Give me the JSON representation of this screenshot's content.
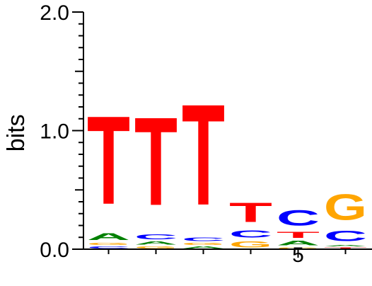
{
  "chart_data": {
    "type": "sequence-logo",
    "ylabel": "bits",
    "ylim": [
      0,
      2.0
    ],
    "y_ticks": [
      {
        "value": 0.0,
        "label": "0.0"
      },
      {
        "value": 1.0,
        "label": "1.0"
      },
      {
        "value": 2.0,
        "label": "2.0"
      }
    ],
    "x_ticks": [
      {
        "position": 5,
        "label": "5"
      }
    ],
    "colors": {
      "A": "#008000",
      "C": "#0000ff",
      "G": "#ffa500",
      "T": "#ff0000"
    },
    "positions": [
      {
        "position": 1,
        "letters": [
          {
            "letter": "C",
            "bits": 0.03
          },
          {
            "letter": "G",
            "bits": 0.03
          },
          {
            "letter": "A",
            "bits": 0.09
          },
          {
            "letter": "T",
            "bits": 1.19
          }
        ]
      },
      {
        "position": 2,
        "letters": [
          {
            "letter": "G",
            "bits": 0.03
          },
          {
            "letter": "A",
            "bits": 0.04
          },
          {
            "letter": "C",
            "bits": 0.07
          },
          {
            "letter": "T",
            "bits": 1.19
          }
        ]
      },
      {
        "position": 3,
        "letters": [
          {
            "letter": "A",
            "bits": 0.03
          },
          {
            "letter": "G",
            "bits": 0.03
          },
          {
            "letter": "C",
            "bits": 0.05
          },
          {
            "letter": "T",
            "bits": 1.36
          }
        ]
      },
      {
        "position": 4,
        "letters": [
          {
            "letter": "G",
            "bits": 0.08
          },
          {
            "letter": "C",
            "bits": 0.1
          },
          {
            "letter": "T",
            "bits": 0.26
          }
        ]
      },
      {
        "position": 5,
        "letters": [
          {
            "letter": "G",
            "bits": 0.02
          },
          {
            "letter": "A",
            "bits": 0.06
          },
          {
            "letter": "T",
            "bits": 0.08
          },
          {
            "letter": "C",
            "bits": 0.21
          }
        ]
      },
      {
        "position": 6,
        "letters": [
          {
            "letter": "T",
            "bits": 0.02
          },
          {
            "letter": "A",
            "bits": 0.02
          },
          {
            "letter": "C",
            "bits": 0.14
          },
          {
            "letter": "G",
            "bits": 0.35
          }
        ]
      }
    ]
  }
}
